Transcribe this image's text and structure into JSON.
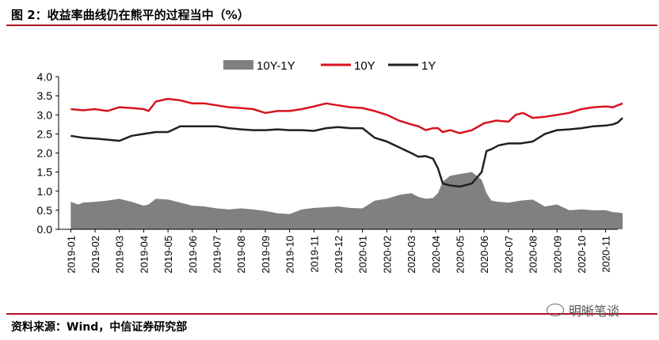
{
  "header": {
    "title": "图 2：收益率曲线仍在熊平的过程当中（%）"
  },
  "footer": {
    "source": "资料来源：Wind，中信证券研究部",
    "watermark": "明晰笔谈"
  },
  "colors": {
    "spread": "#808080",
    "y10": "#d7141f",
    "y1": "#231f20",
    "rule": "#b3122a"
  },
  "chart_data": {
    "type": "line",
    "ylim": [
      0,
      4
    ],
    "yticks": [
      "0.0",
      "0.5",
      "1.0",
      "1.5",
      "2.0",
      "2.5",
      "3.0",
      "3.5",
      "4.0"
    ],
    "categories": [
      "2019-01",
      "2019-02",
      "2019-03",
      "2019-04",
      "2019-05",
      "2019-06",
      "2019-07",
      "2019-08",
      "2019-09",
      "2019-10",
      "2019-11",
      "2019-12",
      "2020-01",
      "2020-02",
      "2020-03",
      "2020-04",
      "2020-05",
      "2020-06",
      "2020-07",
      "2020-08",
      "2020-09",
      "2020-10",
      "2020-11"
    ],
    "legend_position": "top-center",
    "series": [
      {
        "name": "10Y-1Y",
        "kind": "area",
        "x": [
          0,
          0.3,
          0.5,
          1,
          1.5,
          2,
          2.5,
          3,
          3.2,
          3.5,
          4,
          4.5,
          5,
          5.5,
          6,
          6.5,
          7,
          7.5,
          8,
          8.5,
          9,
          9.5,
          10,
          10.5,
          11,
          11.5,
          12,
          12.5,
          13,
          13.5,
          14,
          14.3,
          14.6,
          14.9,
          15.1,
          15.3,
          15.6,
          16,
          16.5,
          16.9,
          17.1,
          17.3,
          17.6,
          18,
          18.5,
          19,
          19.5,
          20,
          20.5,
          21,
          21.5,
          22,
          22.3,
          22.5,
          22.7
        ],
        "values": [
          0.72,
          0.65,
          0.7,
          0.72,
          0.75,
          0.8,
          0.72,
          0.62,
          0.65,
          0.8,
          0.78,
          0.7,
          0.62,
          0.6,
          0.55,
          0.52,
          0.55,
          0.52,
          0.48,
          0.42,
          0.4,
          0.52,
          0.56,
          0.58,
          0.6,
          0.56,
          0.55,
          0.75,
          0.8,
          0.9,
          0.95,
          0.85,
          0.8,
          0.82,
          0.95,
          1.25,
          1.4,
          1.45,
          1.5,
          1.3,
          0.95,
          0.75,
          0.72,
          0.7,
          0.75,
          0.78,
          0.6,
          0.65,
          0.5,
          0.52,
          0.5,
          0.5,
          0.45,
          0.44,
          0.42
        ]
      },
      {
        "name": "10Y",
        "kind": "line",
        "x": [
          0,
          0.5,
          1,
          1.5,
          2,
          2.5,
          3,
          3.2,
          3.5,
          4,
          4.5,
          5,
          5.5,
          6,
          6.5,
          7,
          7.5,
          8,
          8.5,
          9,
          9.5,
          10,
          10.5,
          11,
          11.5,
          12,
          12.5,
          13,
          13.5,
          14,
          14.3,
          14.6,
          14.9,
          15.1,
          15.3,
          15.6,
          16,
          16.5,
          17,
          17.5,
          18,
          18.3,
          18.6,
          19,
          19.5,
          20,
          20.5,
          21,
          21.5,
          22,
          22.3,
          22.5,
          22.7
        ],
        "values": [
          3.15,
          3.12,
          3.15,
          3.1,
          3.2,
          3.18,
          3.15,
          3.1,
          3.35,
          3.42,
          3.38,
          3.3,
          3.3,
          3.25,
          3.2,
          3.18,
          3.15,
          3.05,
          3.1,
          3.1,
          3.15,
          3.22,
          3.3,
          3.25,
          3.2,
          3.18,
          3.1,
          3.0,
          2.85,
          2.75,
          2.7,
          2.6,
          2.65,
          2.65,
          2.55,
          2.6,
          2.52,
          2.6,
          2.78,
          2.85,
          2.82,
          3.0,
          3.05,
          2.92,
          2.95,
          3.0,
          3.05,
          3.15,
          3.2,
          3.22,
          3.2,
          3.25,
          3.3
        ]
      },
      {
        "name": "1Y",
        "kind": "line",
        "x": [
          0,
          0.5,
          1,
          1.5,
          2,
          2.5,
          3,
          3.5,
          4,
          4.5,
          5,
          5.5,
          6,
          6.5,
          7,
          7.5,
          8,
          8.5,
          9,
          9.5,
          10,
          10.5,
          11,
          11.5,
          12,
          12.5,
          13,
          13.5,
          14,
          14.3,
          14.6,
          14.9,
          15.1,
          15.3,
          15.6,
          16,
          16.5,
          16.9,
          17.1,
          17.3,
          17.6,
          18,
          18.5,
          19,
          19.5,
          20,
          20.5,
          21,
          21.5,
          22,
          22.3,
          22.5,
          22.7
        ],
        "values": [
          2.45,
          2.4,
          2.38,
          2.35,
          2.32,
          2.45,
          2.5,
          2.55,
          2.55,
          2.7,
          2.7,
          2.7,
          2.7,
          2.65,
          2.62,
          2.6,
          2.6,
          2.62,
          2.6,
          2.6,
          2.58,
          2.65,
          2.68,
          2.65,
          2.65,
          2.4,
          2.3,
          2.15,
          2.0,
          1.9,
          1.92,
          1.85,
          1.6,
          1.2,
          1.15,
          1.12,
          1.2,
          1.5,
          2.05,
          2.1,
          2.2,
          2.25,
          2.25,
          2.3,
          2.5,
          2.6,
          2.62,
          2.65,
          2.7,
          2.72,
          2.75,
          2.8,
          2.92
        ]
      }
    ]
  }
}
